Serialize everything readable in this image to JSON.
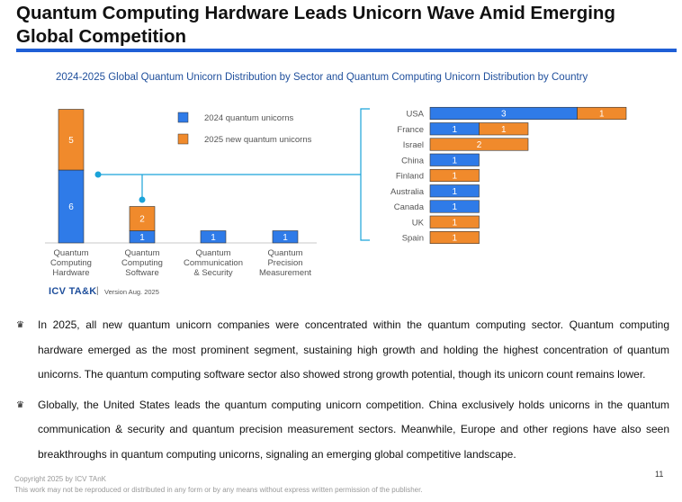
{
  "page": {
    "title": "Quantum Computing Hardware Leads Unicorn Wave Amid Emerging Global Competition",
    "page_number": "11",
    "copyright_line1": "Copyright  2025 by ICV TAnK",
    "copyright_line2": "This work may not be reproduced or distributed in any form or by any means without express written permission of the publisher.",
    "brand": "ICV TA&K",
    "brand_separator": "|",
    "version": "Version Aug. 2025"
  },
  "colors": {
    "series_2024": "#2f7be8",
    "series_2025": "#f08a2c",
    "accent": "#1f5fd6",
    "connector": "#1aa3d9"
  },
  "chart_data": [
    {
      "type": "bar",
      "orientation": "vertical-stacked",
      "title": "2024-2025 Global Quantum Unicorn Distribution by Sector and Quantum Computing Unicorn Distribution by Country",
      "categories": [
        [
          "Quantum",
          "Computing",
          "Hardware"
        ],
        [
          "Quantum",
          "Computing",
          "Software"
        ],
        [
          "Quantum",
          "Communication",
          "& Security"
        ],
        [
          "Quantum",
          "Precision",
          "Measurement"
        ]
      ],
      "series": [
        {
          "name": "2024 quantum unicorns",
          "values": [
            6,
            1,
            1,
            1
          ]
        },
        {
          "name": "2025 new quantum unicorns",
          "values": [
            5,
            2,
            0,
            0
          ]
        }
      ],
      "ylim": [
        0,
        11
      ]
    },
    {
      "type": "bar",
      "orientation": "horizontal-stacked",
      "categories": [
        "USA",
        "France",
        "Israel",
        "China",
        "Finland",
        "Australia",
        "Canada",
        "UK",
        "Spain"
      ],
      "series": [
        {
          "name": "2024 quantum unicorns",
          "values": [
            3,
            1,
            0,
            1,
            0,
            1,
            1,
            0,
            0
          ]
        },
        {
          "name": "2025 new quantum unicorns",
          "values": [
            1,
            1,
            2,
            0,
            1,
            0,
            0,
            1,
            1
          ]
        }
      ],
      "xlim": [
        0,
        4
      ]
    }
  ],
  "bullets": [
    "In 2025, all new quantum unicorn companies were concentrated within the quantum computing sector. Quantum computing hardware emerged as the most prominent segment, sustaining high growth and holding the highest concentration of quantum unicorns. The quantum computing software sector also showed strong growth potential, though its unicorn count remains lower.",
    "Globally, the United States leads the quantum computing unicorn competition. China exclusively holds unicorns in the quantum communication & security and quantum precision measurement sectors. Meanwhile, Europe and other regions have also seen breakthroughs in quantum computing unicorns, signaling an emerging global competitive landscape."
  ]
}
